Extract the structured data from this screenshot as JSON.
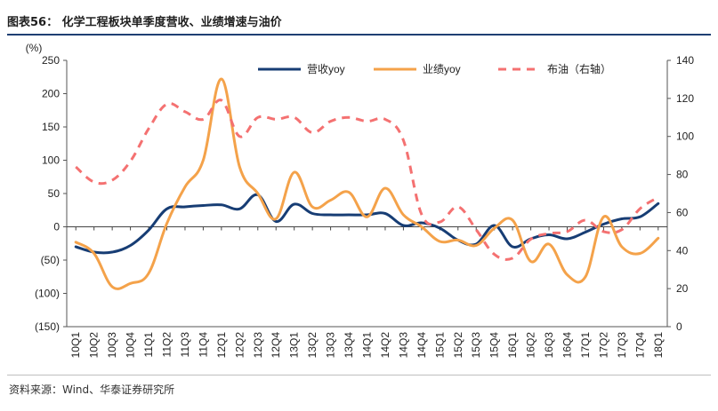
{
  "header": {
    "title": "图表56： 化学工程板块单季度营收、业绩增速与油价"
  },
  "footer": {
    "source": "资料来源：Wind、华泰证券研究所"
  },
  "chart_data": {
    "type": "line",
    "title": "",
    "ylabel_left": "(%)",
    "ylabel_right": "",
    "left_ylim": [
      -150,
      250
    ],
    "left_yticks": [
      -150,
      -100,
      -50,
      0,
      50,
      100,
      150,
      200,
      250
    ],
    "left_tick_labels": [
      "(150)",
      "(100)",
      "(50)",
      "0",
      "50",
      "100",
      "150",
      "200",
      "250"
    ],
    "right_ylim": [
      0,
      140
    ],
    "right_yticks": [
      0,
      20,
      40,
      60,
      80,
      100,
      120,
      140
    ],
    "right_tick_labels": [
      "0",
      "20",
      "40",
      "60",
      "80",
      "100",
      "120",
      "140"
    ],
    "grid": false,
    "legend_position": "top",
    "categories": [
      "10Q1",
      "10Q2",
      "10Q3",
      "10Q4",
      "11Q1",
      "11Q2",
      "11Q3",
      "11Q4",
      "12Q1",
      "12Q2",
      "12Q3",
      "12Q4",
      "13Q1",
      "13Q2",
      "13Q3",
      "13Q4",
      "14Q1",
      "14Q2",
      "14Q3",
      "14Q4",
      "15Q1",
      "15Q2",
      "15Q3",
      "15Q4",
      "16Q1",
      "16Q2",
      "16Q3",
      "16Q4",
      "17Q1",
      "17Q2",
      "17Q3",
      "17Q4",
      "18Q1"
    ],
    "series": [
      {
        "name": "营收yoy",
        "axis": "left",
        "color": "#173d74",
        "dash": "solid",
        "values": [
          -30,
          -38,
          -38,
          -28,
          -5,
          27,
          30,
          32,
          33,
          27,
          48,
          8,
          34,
          20,
          18,
          18,
          18,
          20,
          2,
          6,
          -2,
          -20,
          -26,
          2,
          -30,
          -18,
          -12,
          -18,
          -8,
          4,
          12,
          15,
          35
        ]
      },
      {
        "name": "业绩yoy",
        "axis": "left",
        "color": "#f4a24a",
        "dash": "solid",
        "values": [
          -23,
          -40,
          -90,
          -85,
          -70,
          5,
          60,
          100,
          222,
          90,
          50,
          12,
          82,
          30,
          40,
          52,
          15,
          58,
          18,
          0,
          -22,
          -20,
          -28,
          -2,
          10,
          -52,
          -26,
          -72,
          -75,
          15,
          -30,
          -40,
          -17
        ]
      },
      {
        "name": "布油（右轴）",
        "axis": "right",
        "color": "#f47171",
        "dash": "dashed",
        "values": [
          84,
          76,
          77,
          87,
          104,
          117,
          113,
          109,
          119,
          100,
          110,
          109,
          110,
          102,
          108,
          110,
          108,
          109,
          98,
          59,
          55,
          63,
          51,
          38,
          36,
          46,
          49,
          50,
          56,
          50,
          51,
          62,
          68
        ]
      }
    ]
  }
}
